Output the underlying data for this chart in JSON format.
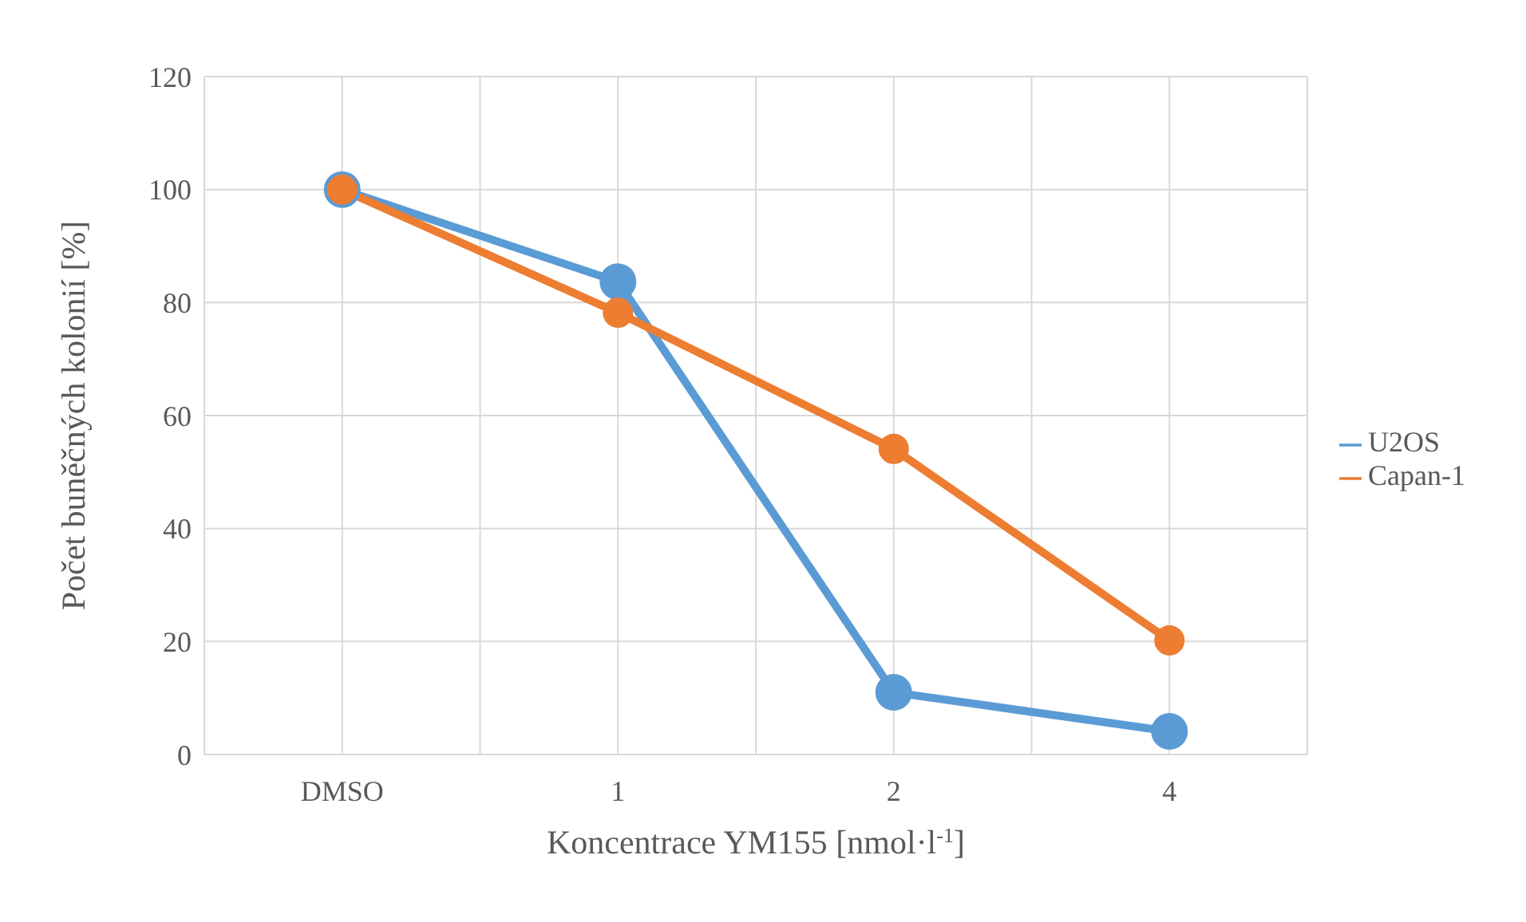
{
  "chart_data": {
    "type": "line",
    "xlabel": "Koncentrace YM155 [nmol·l$^{-1}$]",
    "ylabel": "Počet buněčných kolonií [%]",
    "categories": [
      "DMSO",
      "1",
      "2",
      "4"
    ],
    "series": [
      {
        "name": "U2OS",
        "color": "#5b9bd5",
        "values": [
          100,
          83.7,
          11,
          4.1
        ]
      },
      {
        "name": "Capan-1",
        "color": "#ed7d31",
        "values": [
          100,
          78.2,
          54.1,
          20.2
        ]
      }
    ],
    "ylim": [
      0,
      120
    ],
    "yticks": [
      0,
      20,
      40,
      60,
      80,
      100,
      120
    ],
    "grid": true,
    "legend": "right",
    "marker": "circle",
    "line_style": "solid"
  }
}
